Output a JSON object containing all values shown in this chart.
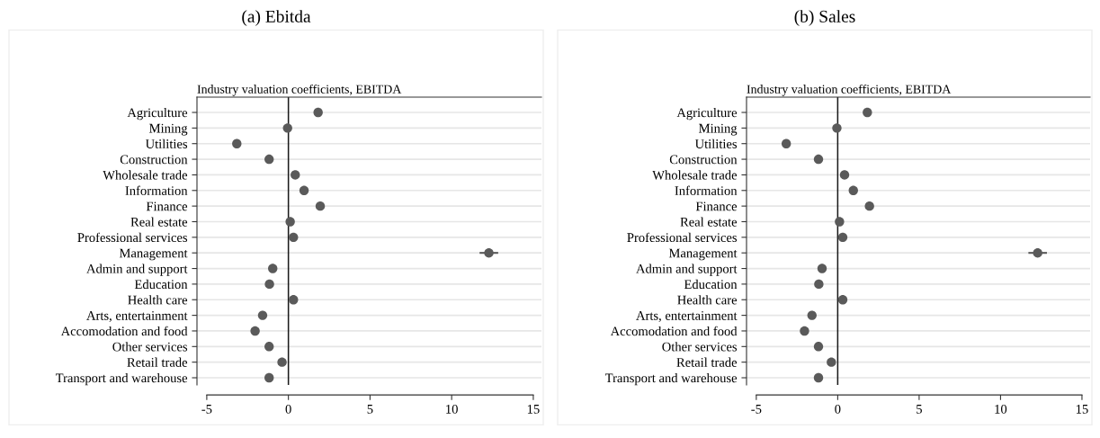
{
  "chart_data": [
    {
      "type": "scatter",
      "title": "(a) Ebitda",
      "subtitle": "Industry valuation coefficients, EBITDA",
      "orientation": "horizontal",
      "categories": [
        "Agriculture",
        "Mining",
        "Utilities",
        "Construction",
        "Wholesale trade",
        "Information",
        "Finance",
        "Real estate",
        "Professional services",
        "Management",
        "Admin and support",
        "Education",
        "Health care",
        "Arts, entertainment",
        "Accomodation and food",
        "Other services",
        "Retail trade",
        "Transport and warehouse"
      ],
      "values": [
        1.82,
        -0.05,
        -3.16,
        -1.18,
        0.42,
        0.96,
        1.95,
        0.11,
        0.31,
        12.28,
        -0.96,
        -1.16,
        0.31,
        -1.58,
        -2.04,
        -1.18,
        -0.39,
        -1.18
      ],
      "errors": [
        null,
        null,
        null,
        null,
        null,
        null,
        null,
        null,
        null,
        [
          11.71,
          12.85
        ],
        null,
        null,
        null,
        null,
        null,
        null,
        null,
        null
      ],
      "color": "#5a5a5a",
      "marker": "circle",
      "xlim": [
        -5.6,
        15.5
      ],
      "xticks": [
        -5,
        0,
        5,
        10,
        15
      ],
      "grid": "y",
      "ref_lines": [
        {
          "axis": "x",
          "value": 0,
          "color": "#1a1a1a"
        }
      ]
    },
    {
      "type": "scatter",
      "title": "(b) Sales",
      "subtitle": "Industry valuation coefficients, EBITDA",
      "orientation": "horizontal",
      "categories": [
        "Agriculture",
        "Mining",
        "Utilities",
        "Construction",
        "Wholesale trade",
        "Information",
        "Finance",
        "Real estate",
        "Professional services",
        "Management",
        "Admin and support",
        "Education",
        "Health care",
        "Arts, entertainment",
        "Accomodation and food",
        "Other services",
        "Retail trade",
        "Transport and warehouse"
      ],
      "values": [
        1.82,
        -0.05,
        -3.16,
        -1.18,
        0.42,
        0.96,
        1.95,
        0.11,
        0.31,
        12.28,
        -0.96,
        -1.16,
        0.31,
        -1.58,
        -2.04,
        -1.18,
        -0.39,
        -1.18
      ],
      "errors": [
        null,
        null,
        null,
        null,
        null,
        null,
        null,
        null,
        null,
        [
          11.71,
          12.85
        ],
        null,
        null,
        null,
        null,
        null,
        null,
        null,
        null
      ],
      "color": "#5a5a5a",
      "marker": "circle",
      "xlim": [
        -5.6,
        15.5
      ],
      "xticks": [
        -5,
        0,
        5,
        10,
        15
      ],
      "grid": "y",
      "ref_lines": [
        {
          "axis": "x",
          "value": 0,
          "color": "#1a1a1a"
        }
      ]
    }
  ]
}
